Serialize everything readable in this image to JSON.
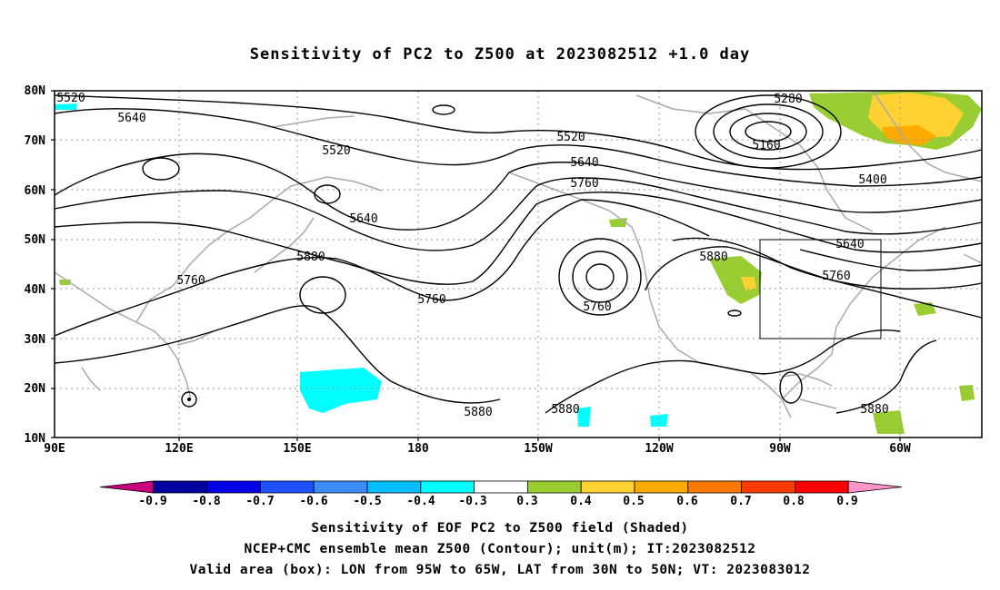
{
  "title": "Sensitivity of PC2 to Z500 at 2023082512 +1.0 day",
  "lat_labels": [
    "80N",
    "70N",
    "60N",
    "50N",
    "40N",
    "30N",
    "20N",
    "10N"
  ],
  "lon_labels": [
    "90E",
    "120E",
    "150E",
    "180",
    "150W",
    "120W",
    "90W",
    "60W"
  ],
  "contour_labels": [
    "5520",
    "5640",
    "5520",
    "5640",
    "5760",
    "5880",
    "5760",
    "5520",
    "5640",
    "5760",
    "5760",
    "5280",
    "5160",
    "5400",
    "5880",
    "5640",
    "5760",
    "5880",
    "5880",
    "5880"
  ],
  "colorbar": {
    "ticks": [
      "-0.9",
      "-0.8",
      "-0.7",
      "-0.6",
      "-0.5",
      "-0.4",
      "-0.3",
      "0.3",
      "0.4",
      "0.5",
      "0.6",
      "0.7",
      "0.8",
      "0.9"
    ],
    "colors": [
      "#c8007d",
      "#0000a0",
      "#0000e6",
      "#1e50ff",
      "#3c8cff",
      "#00beff",
      "#00ffff",
      "#ffffff",
      "#9acd32",
      "#ffd232",
      "#ffaa00",
      "#ff7800",
      "#ff3c00",
      "#ff0000",
      "#ff96c8"
    ]
  },
  "captions": [
    "Sensitivity of EOF PC2 to Z500 field (Shaded)",
    "NCEP+CMC ensemble mean Z500 (Contour); unit(m); IT:2023082512",
    "Valid area (box): LON from 95W to 65W, LAT from 30N to 50N; VT: 2023083012"
  ],
  "valid_box": {
    "lon": [
      "95W",
      "65W"
    ],
    "lat": [
      "30N",
      "50N"
    ]
  }
}
